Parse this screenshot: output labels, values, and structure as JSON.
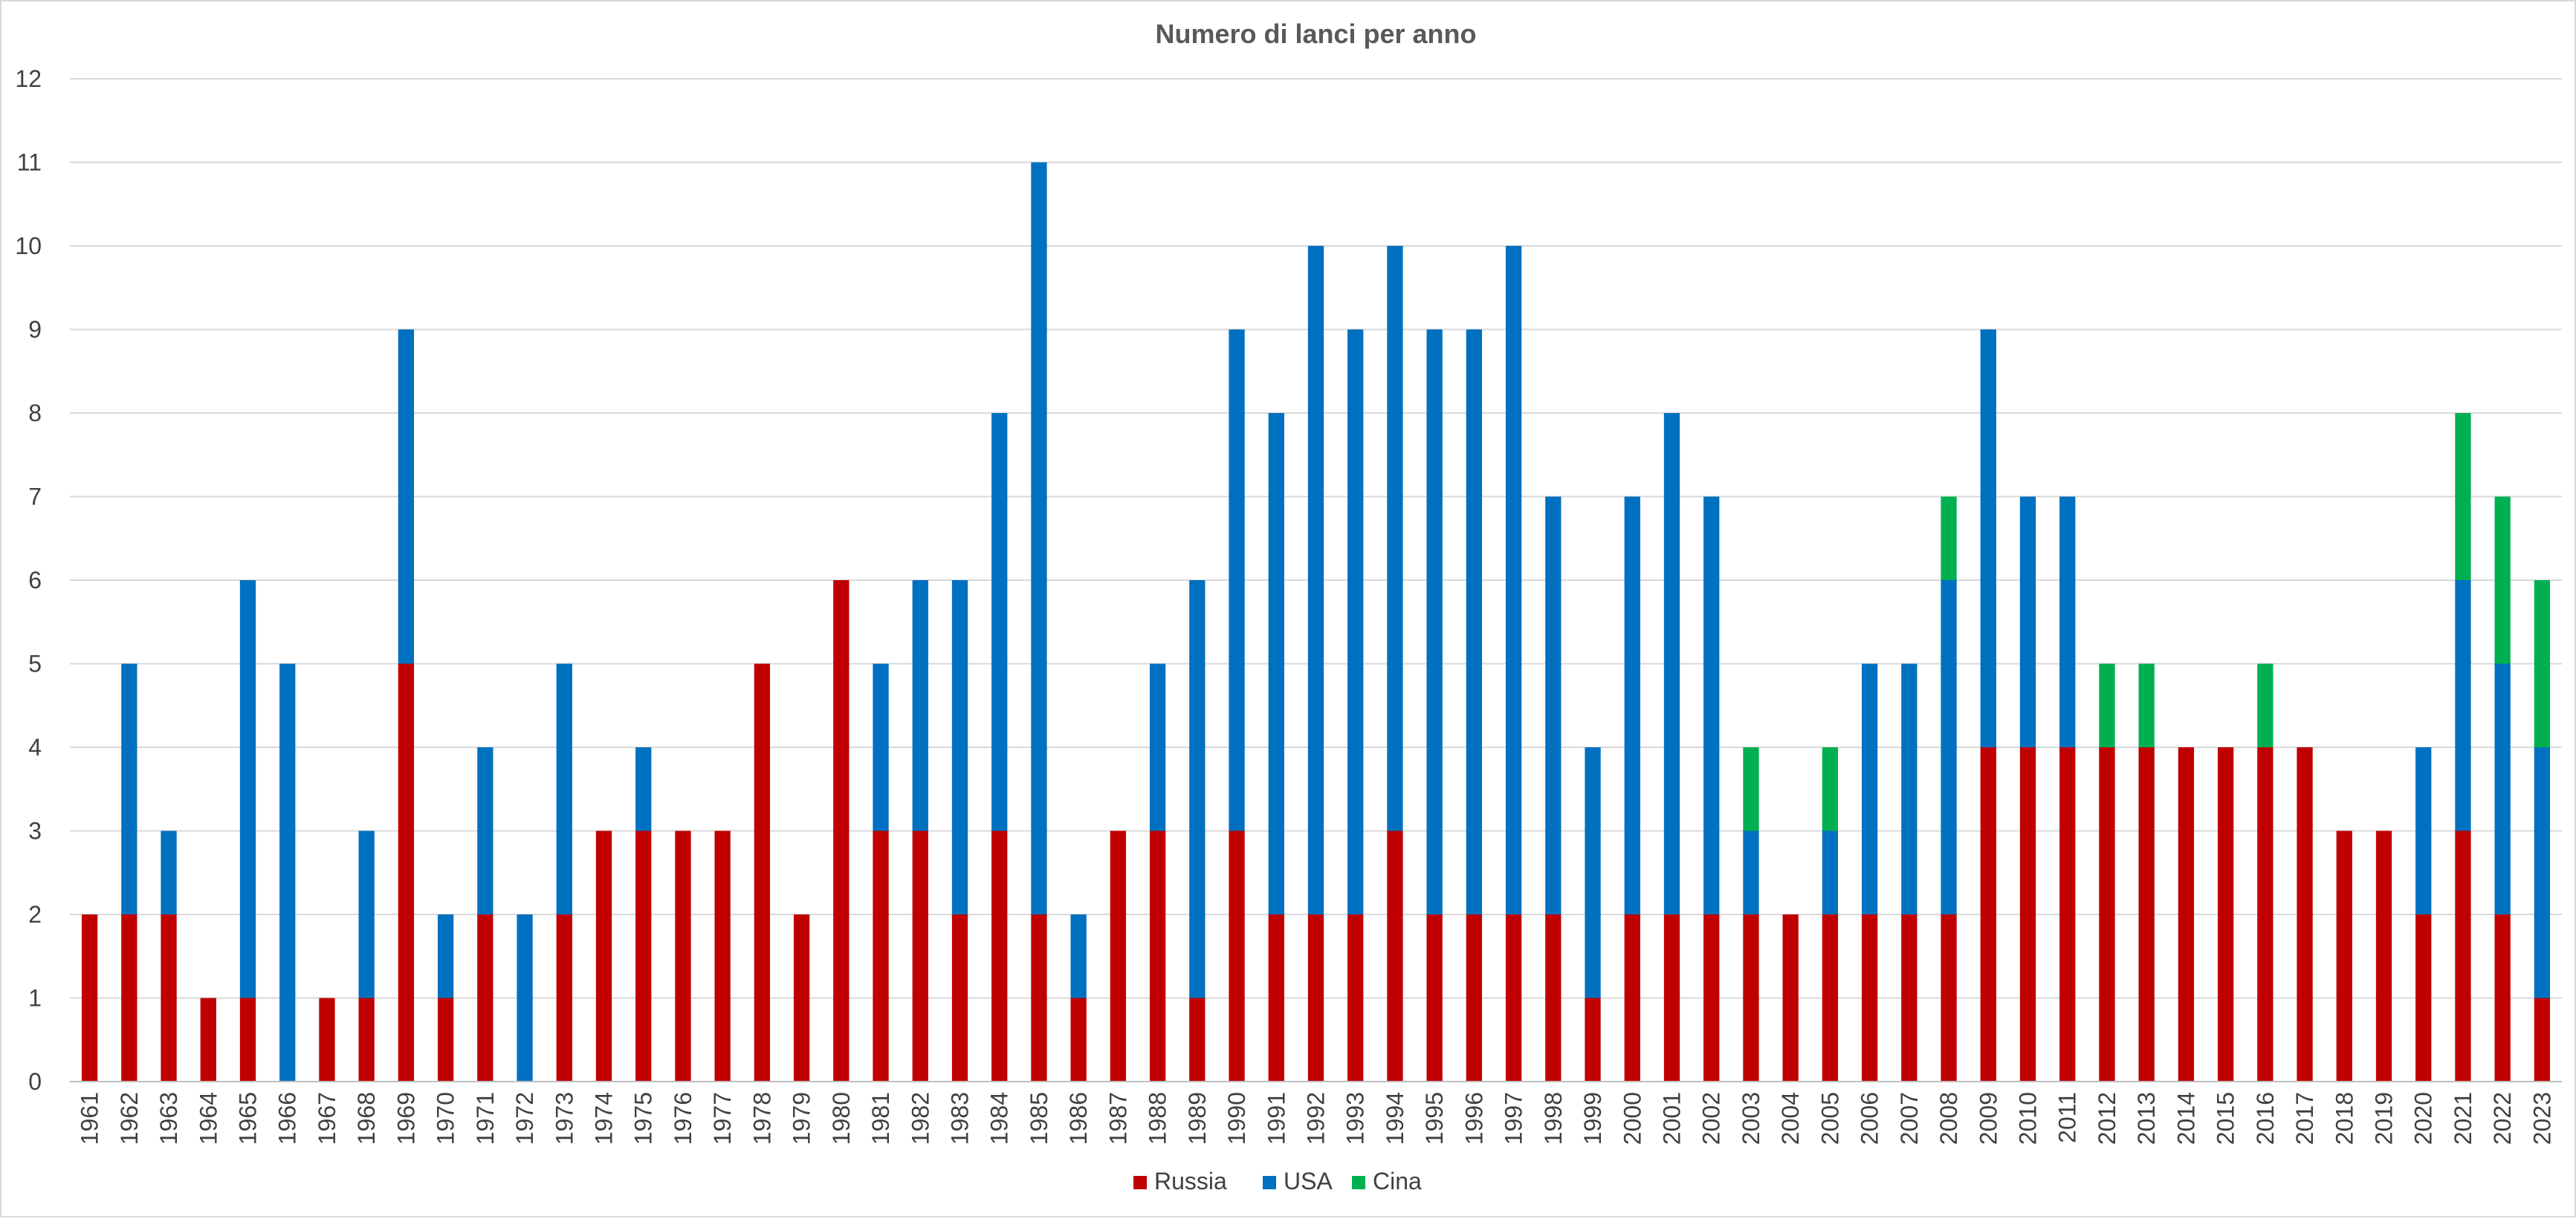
{
  "chart_data": {
    "type": "bar",
    "stacked": true,
    "title": "Numero di lanci per anno",
    "xlabel": "",
    "ylabel": "",
    "ylim": [
      0,
      12
    ],
    "yticks": [
      0,
      1,
      2,
      3,
      4,
      5,
      6,
      7,
      8,
      9,
      10,
      11,
      12
    ],
    "grid": true,
    "legend_position": "bottom",
    "categories": [
      "1961",
      "1962",
      "1963",
      "1964",
      "1965",
      "1966",
      "1967",
      "1968",
      "1969",
      "1970",
      "1971",
      "1972",
      "1973",
      "1974",
      "1975",
      "1976",
      "1977",
      "1978",
      "1979",
      "1980",
      "1981",
      "1982",
      "1983",
      "1984",
      "1985",
      "1986",
      "1987",
      "1988",
      "1989",
      "1990",
      "1991",
      "1992",
      "1993",
      "1994",
      "1995",
      "1996",
      "1997",
      "1998",
      "1999",
      "2000",
      "2001",
      "2002",
      "2003",
      "2004",
      "2005",
      "2006",
      "2007",
      "2008",
      "2009",
      "2010",
      "2011",
      "2012",
      "2013",
      "2014",
      "2015",
      "2016",
      "2017",
      "2018",
      "2019",
      "2020",
      "2021",
      "2022",
      "2023"
    ],
    "series": [
      {
        "name": "Russia",
        "color": "#c00000",
        "values": [
          2,
          2,
          2,
          1,
          1,
          0,
          1,
          1,
          5,
          1,
          2,
          0,
          2,
          3,
          3,
          3,
          3,
          5,
          2,
          6,
          3,
          3,
          2,
          3,
          2,
          1,
          3,
          3,
          1,
          3,
          2,
          2,
          2,
          3,
          2,
          2,
          2,
          2,
          1,
          2,
          2,
          2,
          2,
          2,
          2,
          2,
          2,
          2,
          4,
          4,
          4,
          4,
          4,
          4,
          4,
          4,
          4,
          3,
          3,
          2,
          3,
          2,
          1
        ]
      },
      {
        "name": "USA",
        "color": "#0070c0",
        "values": [
          0,
          3,
          1,
          0,
          5,
          5,
          0,
          2,
          4,
          1,
          2,
          2,
          3,
          0,
          1,
          0,
          0,
          0,
          0,
          0,
          2,
          3,
          4,
          5,
          9,
          1,
          0,
          2,
          5,
          6,
          6,
          8,
          7,
          7,
          7,
          7,
          8,
          5,
          3,
          5,
          6,
          5,
          1,
          0,
          1,
          3,
          3,
          4,
          5,
          3,
          3,
          0,
          0,
          0,
          0,
          0,
          0,
          0,
          0,
          2,
          3,
          3,
          3
        ]
      },
      {
        "name": "Cina",
        "color": "#00b050",
        "values": [
          0,
          0,
          0,
          0,
          0,
          0,
          0,
          0,
          0,
          0,
          0,
          0,
          0,
          0,
          0,
          0,
          0,
          0,
          0,
          0,
          0,
          0,
          0,
          0,
          0,
          0,
          0,
          0,
          0,
          0,
          0,
          0,
          0,
          0,
          0,
          0,
          0,
          0,
          0,
          0,
          0,
          0,
          1,
          0,
          1,
          0,
          0,
          1,
          0,
          0,
          0,
          1,
          1,
          0,
          0,
          1,
          0,
          0,
          0,
          0,
          2,
          2,
          2
        ]
      }
    ]
  }
}
